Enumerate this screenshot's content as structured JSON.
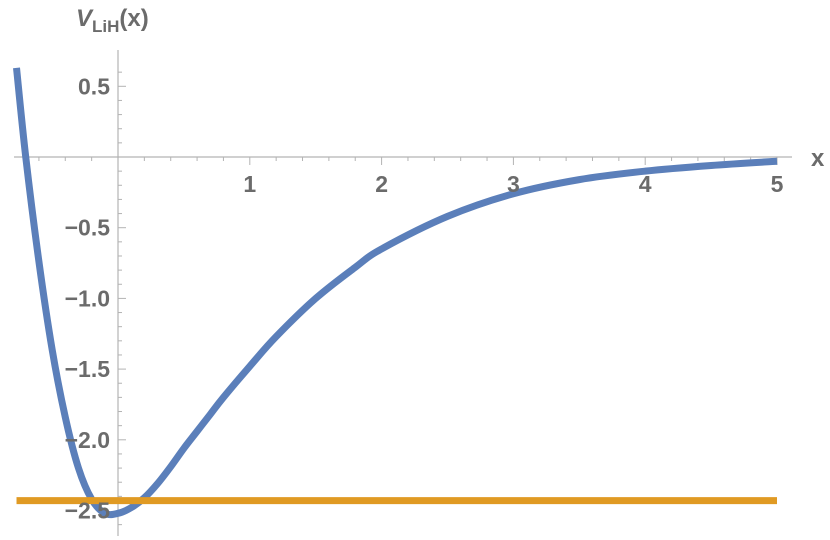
{
  "chart_data": {
    "type": "line",
    "title": "",
    "ylabel_main": "V",
    "ylabel_sub": "LiH",
    "ylabel_arg": "(x)",
    "xlabel": "x",
    "xlim": [
      -0.8,
      5.05
    ],
    "ylim": [
      -2.72,
      0.67
    ],
    "xticks": [
      1,
      2,
      3,
      4,
      5
    ],
    "xtick_labels": [
      "1",
      "2",
      "3",
      "4",
      "5"
    ],
    "yticks": [
      0.5,
      -0.5,
      -1.0,
      -1.5,
      -2.0,
      -2.5
    ],
    "ytick_labels": [
      "0.5",
      "−0.5",
      "−1.0",
      "−1.5",
      "−2.0",
      "−2.5"
    ],
    "colors": {
      "curve": "#5b7fba",
      "level": "#e09a23",
      "axis": "#b3b3b3",
      "text": "#6b6b6b"
    },
    "series": [
      {
        "x": [
          -0.77,
          -0.7,
          -0.6,
          -0.5,
          -0.4,
          -0.3,
          -0.2,
          -0.1,
          0.0,
          0.1,
          0.2,
          0.3,
          0.4,
          0.5,
          0.6,
          0.7,
          0.8,
          1.0,
          1.2,
          1.5,
          1.8,
          2.0,
          2.5,
          3.0,
          3.5,
          4.0,
          4.5,
          5.0
        ],
        "y": [
          0.63,
          0.0,
          -0.74,
          -1.36,
          -1.84,
          -2.2,
          -2.42,
          -2.52,
          -2.52,
          -2.48,
          -2.41,
          -2.31,
          -2.19,
          -2.06,
          -1.94,
          -1.82,
          -1.7,
          -1.48,
          -1.27,
          -1.0,
          -0.78,
          -0.65,
          -0.42,
          -0.26,
          -0.16,
          -0.1,
          -0.06,
          -0.03
        ]
      },
      {
        "x": [
          -0.77,
          5.0
        ],
        "y": [
          -2.43,
          -2.43
        ]
      }
    ]
  }
}
